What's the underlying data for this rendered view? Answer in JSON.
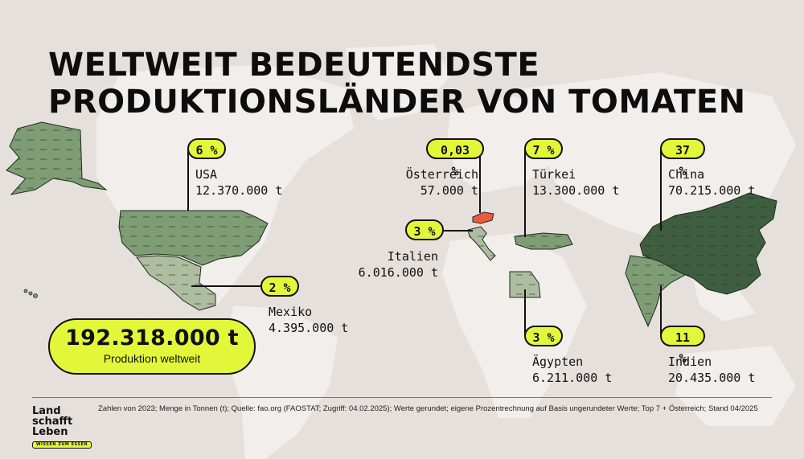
{
  "title": {
    "line1": "WELTWEIT BEDEUTENDSTE",
    "line2": "PRODUKTIONSLÄNDER VON TOMATEN"
  },
  "countries": [
    {
      "id": "usa",
      "name": "USA",
      "share": "6 %",
      "amount": "12.370.000 t",
      "color": "#7f9d74"
    },
    {
      "id": "mexiko",
      "name": "Mexiko",
      "share": "2 %",
      "amount": "4.395.000 t",
      "color": "#aebd9f"
    },
    {
      "id": "oesterreich",
      "name": "Österreich",
      "share": "0,03 %",
      "amount": "57.000 t",
      "color": "#ef5a3c"
    },
    {
      "id": "italien",
      "name": "Italien",
      "share": "3 %",
      "amount": "6.016.000 t",
      "color": "#aebd9f"
    },
    {
      "id": "tuerkei",
      "name": "Türkei",
      "share": "7 %",
      "amount": "13.300.000 t",
      "color": "#7f9d74"
    },
    {
      "id": "aegypten",
      "name": "Ägypten",
      "share": "3 %",
      "amount": "6.211.000 t",
      "color": "#aebd9f"
    },
    {
      "id": "china",
      "name": "China",
      "share": "37 %",
      "amount": "70.215.000 t",
      "color": "#3f5e3f"
    },
    {
      "id": "indien",
      "name": "Indien",
      "share": "11 %",
      "amount": "20.435.000 t",
      "color": "#7f9d74"
    }
  ],
  "total": {
    "value": "192.318.000 t",
    "label": "Produktion weltweit"
  },
  "footnote": "Zahlen von 2023; Menge in Tonnen (t); Quelle: fao.org (FAOSTAT; Zugriff: 04.02.2025); Werte gerundet; eigene Prozentrechnung auf Basis ungerundeter Werte; Top 7 + Österreich; Stand 04/2025",
  "logo": {
    "line1": "Land",
    "line2": "schafft",
    "line3": "Leben",
    "tagline": "WISSEN ZUM ESSEN"
  },
  "colors": {
    "background": "#e6e0dc",
    "land": "#f1eeec",
    "highlight": "#e3f73a",
    "austria": "#ef5a3c"
  }
}
